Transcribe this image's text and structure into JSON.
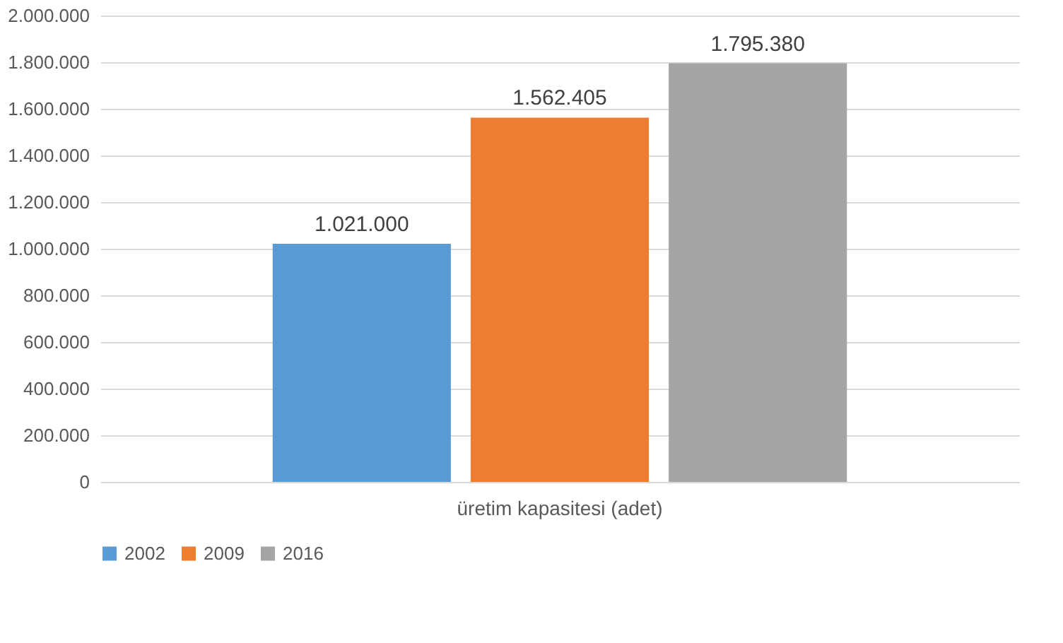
{
  "chart_data": {
    "type": "bar",
    "categories": [
      "üretim kapasitesi (adet)"
    ],
    "series": [
      {
        "name": "2002",
        "color": "#5b9bd5",
        "values": [
          1021000
        ],
        "value_labels": [
          "1.021.000"
        ]
      },
      {
        "name": "2009",
        "color": "#ed7d31",
        "values": [
          1562405
        ],
        "value_labels": [
          "1.562.405"
        ]
      },
      {
        "name": "2016",
        "color": "#a5a5a5",
        "values": [
          1795380
        ],
        "value_labels": [
          "1.795.380"
        ]
      }
    ],
    "ylim": [
      0,
      2000000
    ],
    "yticks": [
      {
        "value": 0,
        "label": "0"
      },
      {
        "value": 200000,
        "label": "200.000"
      },
      {
        "value": 400000,
        "label": "400.000"
      },
      {
        "value": 600000,
        "label": "600.000"
      },
      {
        "value": 800000,
        "label": "800.000"
      },
      {
        "value": 1000000,
        "label": "1.000.000"
      },
      {
        "value": 1200000,
        "label": "1.200.000"
      },
      {
        "value": 1400000,
        "label": "1.400.000"
      },
      {
        "value": 1600000,
        "label": "1.600.000"
      },
      {
        "value": 1800000,
        "label": "1.800.000"
      },
      {
        "value": 2000000,
        "label": "2.000.000"
      }
    ],
    "grid": "y",
    "legend": "bottom"
  }
}
